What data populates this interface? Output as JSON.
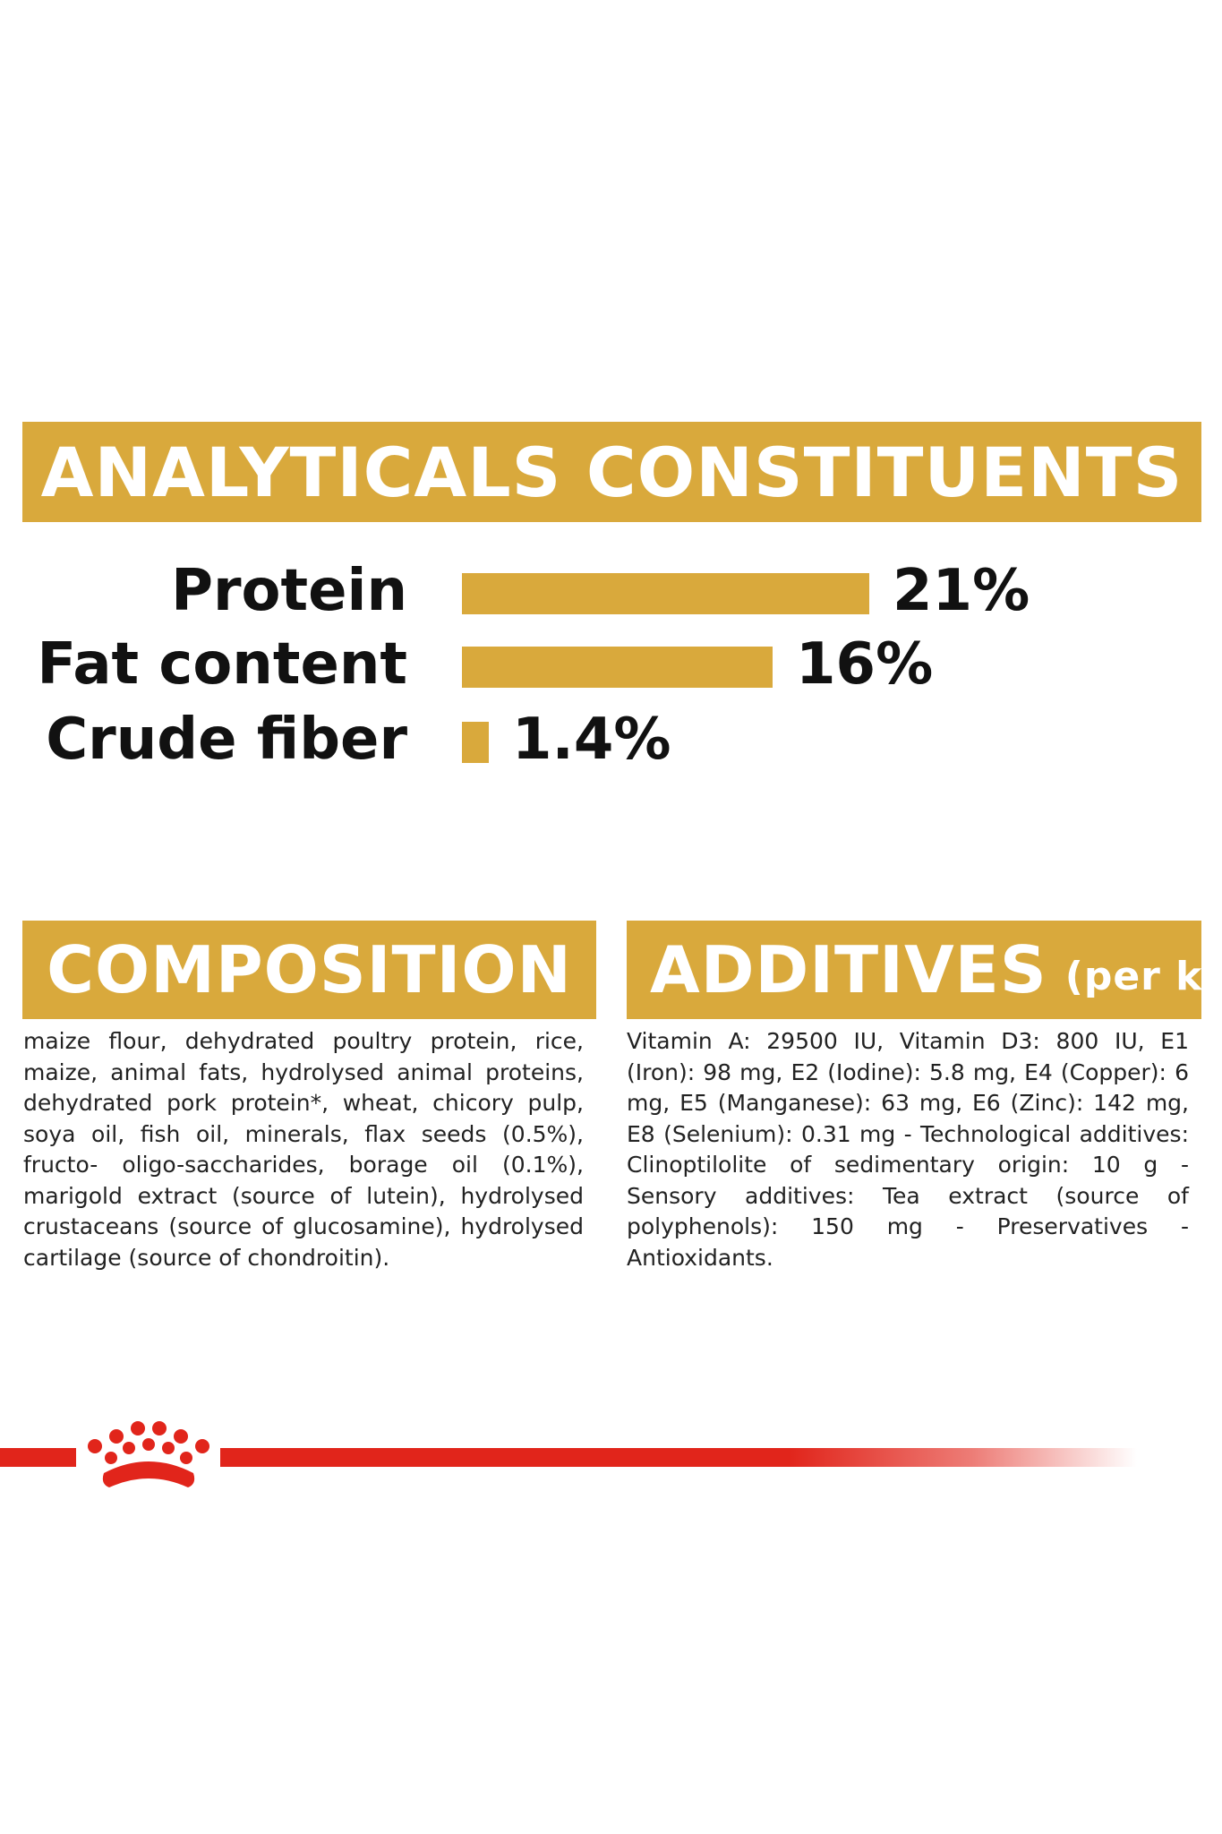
{
  "analytics": {
    "title": "ANALYTICALS CONSTITUENTS",
    "max_percent": 21,
    "items": [
      {
        "label": "Protein",
        "value_text": "21%",
        "value": 21
      },
      {
        "label": "Fat content",
        "value_text": "16%",
        "value": 16
      },
      {
        "label": "Crude fiber",
        "value_text": "1.4%",
        "value": 1.4
      }
    ]
  },
  "composition": {
    "title": "COMPOSITION",
    "text": "maize flour, dehydrated poultry protein, rice, maize, animal fats, hydrolysed animal proteins, dehydrated pork protein*, wheat, chicory pulp, soya oil, fish oil, minerals, flax seeds (0.5%), fructo- oligo-saccharides, borage oil (0.1%), marigold extract (source of lutein), hydrolysed crustaceans (source of glucosamine), hydrolysed cartilage (source of chondroitin)."
  },
  "additives": {
    "title": "ADDITIVES",
    "subtitle": "(per kg)",
    "text": "Vitamin A: 29500 IU, Vitamin D3: 800 IU, E1 (Iron): 98 mg, E2 (Iodine): 5.8 mg, E4 (Copper): 6 mg, E5 (Manganese): 63 mg, E6 (Zinc): 142 mg, E8 (Selenium): 0.31 mg - Technological additives: Clinoptilolite of sedimentary origin: 10 g - Sensory additives: Tea extract (source of polyphenols): 150 mg - Preservatives - Antioxidants."
  },
  "colors": {
    "accent": "#d9a93c",
    "brand_red": "#e1251b"
  },
  "logo": {
    "icon": "royal-canin-crown-icon"
  }
}
